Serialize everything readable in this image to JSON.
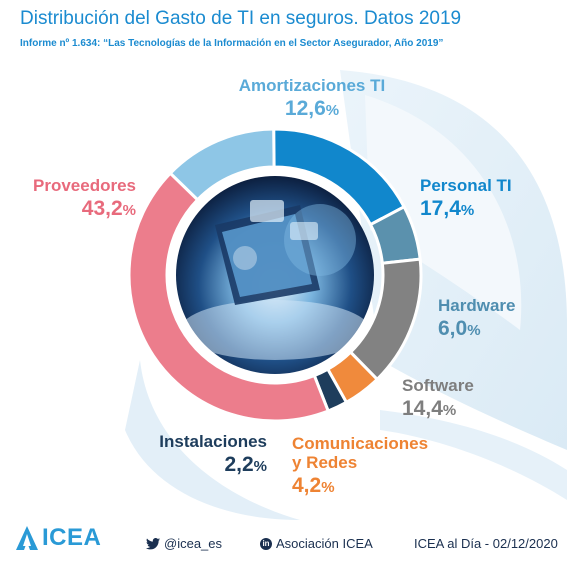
{
  "header": {
    "title": "Distribución del Gasto de TI en seguros. Datos 2019",
    "subtitle": "Informe nº 1.634: “Las Tecnologías de la Información en el Sector Asegurador, Año 2019”"
  },
  "chart_data": {
    "type": "pie",
    "variant": "donut",
    "unit": "%",
    "title": "Distribución del Gasto de TI en seguros. Datos 2019",
    "slices": [
      {
        "label": "Amortizaciones TI",
        "value": 12.6,
        "display": "12,6",
        "color": "#8ec6e6"
      },
      {
        "label": "Personal TI",
        "value": 17.4,
        "display": "17,4",
        "color": "#1187cc"
      },
      {
        "label": "Hardware",
        "value": 6.0,
        "display": "6,0",
        "color": "#5b91ad"
      },
      {
        "label": "Software",
        "value": 14.4,
        "display": "14,4",
        "color": "#828282"
      },
      {
        "label": "Comunicaciones y Redes",
        "value": 4.2,
        "display": "4,2",
        "color": "#f08a3c"
      },
      {
        "label": "Instalaciones",
        "value": 2.2,
        "display": "2,2",
        "color": "#1e3d5c"
      },
      {
        "label": "Proveedores",
        "value": 43.2,
        "display": "43,2",
        "color": "#ec7d8c"
      }
    ]
  },
  "labels": {
    "amortizaciones": {
      "name": "Amortizaciones TI",
      "pct": "12,6",
      "unit": "%"
    },
    "personal": {
      "name": "Personal TI",
      "pct": "17,4",
      "unit": "%"
    },
    "hardware": {
      "name": "Hardware",
      "pct": "6,0",
      "unit": "%"
    },
    "software": {
      "name": "Software",
      "pct": "14,4",
      "unit": "%"
    },
    "comunicaciones": {
      "name1": "Comunicaciones",
      "name2": "y Redes",
      "pct": "4,2",
      "unit": "%"
    },
    "instalaciones": {
      "name": "Instalaciones",
      "pct": "2,2",
      "unit": "%"
    },
    "proveedores": {
      "name": "Proveedores",
      "pct": "43,2",
      "unit": "%"
    }
  },
  "footer": {
    "brand": "ICEA",
    "twitter": "@icea_es",
    "linkedin_badge": "in",
    "linkedin": "Asociación ICEA",
    "date": "ICEA al Día - 02/12/2020"
  },
  "icons": [
    "twitter-bird-icon",
    "linkedin-icon",
    "icea-logo-icon"
  ]
}
